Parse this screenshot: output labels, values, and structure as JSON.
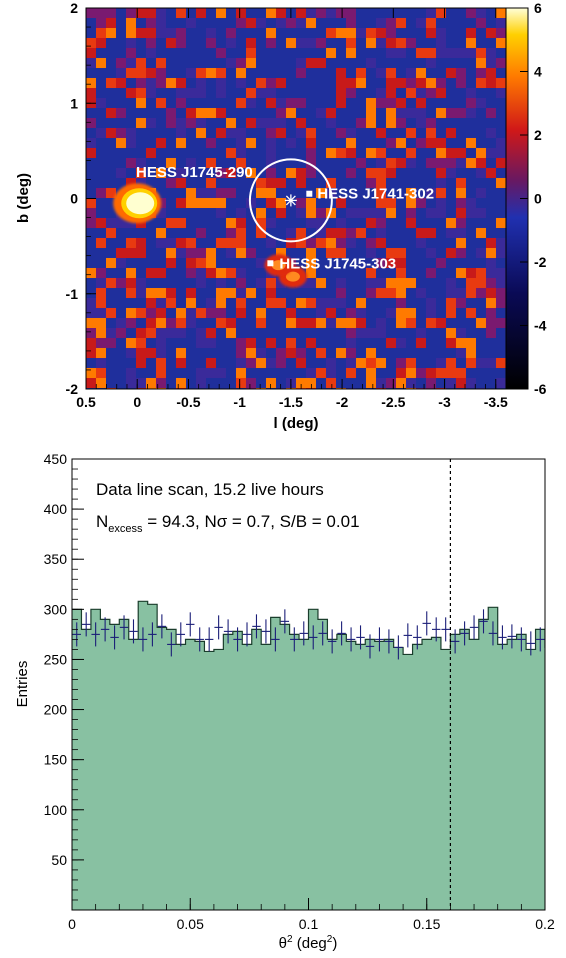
{
  "chart_data": [
    {
      "type": "heatmap",
      "xlabel": "l (deg)",
      "ylabel": "b (deg)",
      "xlim": [
        0.5,
        -3.6
      ],
      "ylim": [
        -2,
        2
      ],
      "xticks": [
        "0.5",
        "0",
        "-0.5",
        "-1",
        "-1.5",
        "-2",
        "-2.5",
        "-3",
        "-3.5"
      ],
      "xtick_values": [
        0.5,
        0,
        -0.5,
        -1,
        -1.5,
        -2,
        -2.5,
        -3,
        -3.5
      ],
      "yticks": [
        "2",
        "1",
        "0",
        "-1",
        "-2"
      ],
      "ytick_values": [
        2,
        1,
        0,
        -1,
        -2
      ],
      "colorbar": {
        "range": [
          -6,
          6
        ],
        "ticks": [
          "6",
          "4",
          "2",
          "0",
          "-2",
          "-4",
          "-6"
        ],
        "tick_values": [
          6,
          4,
          2,
          0,
          -2,
          -4,
          -6
        ]
      },
      "hot_spots": [
        {
          "l": 0.0,
          "b": -0.05,
          "value": 7
        },
        {
          "l": -1.52,
          "b": -0.82,
          "value": 3
        },
        {
          "l": -1.38,
          "b": -0.7,
          "value": 2.5
        }
      ],
      "sources": [
        {
          "name": "HESS J1745-290",
          "l": -0.1,
          "b": 0.28,
          "marker": false
        },
        {
          "name": "HESS J1741-302",
          "l": -1.68,
          "b": 0.05,
          "marker": true
        },
        {
          "name": "HESS J1745-303",
          "l": -1.3,
          "b": -0.68,
          "marker": true
        }
      ],
      "circle": {
        "l": -1.5,
        "b": -0.02,
        "radius_deg": 0.4
      },
      "star": {
        "l": -1.5,
        "b": -0.02
      }
    },
    {
      "type": "bar",
      "xlabel_base": "θ",
      "xlabel_sup": "2",
      "xlabel_mid": " (deg",
      "xlabel_sup2": "2",
      "xlabel_end": ")",
      "ylabel": "Entries",
      "xlim": [
        0,
        0.2
      ],
      "ylim": [
        0,
        450
      ],
      "xticks": [
        "0",
        "0.05",
        "0.1",
        "0.15",
        "0.2"
      ],
      "xtick_values": [
        0,
        0.05,
        0.1,
        0.15,
        0.2
      ],
      "yticks": [
        "50",
        "100",
        "150",
        "200",
        "250",
        "300",
        "350",
        "400",
        "450"
      ],
      "ytick_values": [
        50,
        100,
        150,
        200,
        250,
        300,
        350,
        400,
        450
      ],
      "bin_width": 0.004,
      "on_values": [
        300,
        280,
        300,
        290,
        285,
        290,
        270,
        308,
        305,
        282,
        280,
        265,
        270,
        268,
        258,
        260,
        275,
        278,
        265,
        280,
        265,
        292,
        285,
        275,
        270,
        300,
        290,
        270,
        275,
        268,
        265,
        270,
        268,
        270,
        262,
        255,
        265,
        270,
        272,
        260,
        275,
        280,
        270,
        290,
        302,
        265,
        270,
        275,
        260,
        280,
        262,
        250,
        265,
        260,
        270,
        275,
        248,
        258,
        268,
        270
      ],
      "off_values": [
        275,
        285,
        275,
        280,
        272,
        282,
        278,
        270,
        275,
        283,
        265,
        275,
        285,
        270,
        270,
        282,
        278,
        270,
        275,
        283,
        278,
        270,
        288,
        270,
        276,
        272,
        276,
        268,
        276,
        270,
        272,
        263,
        270,
        268,
        262,
        274,
        272,
        286,
        280,
        280,
        268,
        276,
        282,
        288,
        276,
        272,
        273,
        270,
        266,
        270,
        278,
        268,
        272,
        264,
        263,
        276,
        268,
        260,
        270,
        266
      ],
      "off_error": 12,
      "cut_line_x": 0.16,
      "fill_color": "#88c1a2",
      "edge_color": "#1a3d2c",
      "marker_color": "#1b1e78",
      "annotation_line1": "Data line scan, 15.2 live hours",
      "annotation_N": "N",
      "annotation_Nsub": "excess",
      "annotation_rest": " = 94.3, Nσ = 0.7, S/B = 0.01"
    }
  ]
}
